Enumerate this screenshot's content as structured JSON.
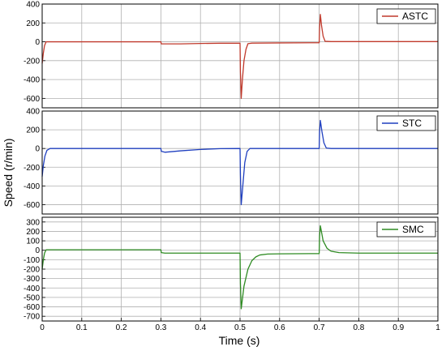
{
  "chart_data": {
    "type": "line",
    "xlabel": "Time (s)",
    "ylabel": "Speed (r/min)",
    "xlim": [
      0,
      1
    ],
    "x_ticks": [
      0,
      0.1,
      0.2,
      0.3,
      0.4,
      0.5,
      0.6,
      0.7,
      0.8,
      0.9,
      1
    ],
    "x_tick_labels": [
      "0",
      "0.1",
      "0.2",
      "0.3",
      "0.4",
      "0.5",
      "0.6",
      "0.7",
      "0.8",
      "0.9",
      "1"
    ],
    "grid": true,
    "legend_position": "top-right",
    "panels": [
      {
        "id": "astc",
        "ylim": [
          -700,
          400
        ],
        "y_ticks": [
          400,
          200,
          0,
          -200,
          -400,
          -600
        ],
        "series": [
          {
            "name": "ASTC",
            "color": "#c0392b",
            "points": [
              [
                0,
                -230
              ],
              [
                0.003,
                -120
              ],
              [
                0.006,
                -40
              ],
              [
                0.01,
                0
              ],
              [
                0.02,
                0
              ],
              [
                0.3,
                0
              ],
              [
                0.301,
                -22
              ],
              [
                0.35,
                -22
              ],
              [
                0.4,
                -18
              ],
              [
                0.45,
                -15
              ],
              [
                0.499,
                -15
              ],
              [
                0.5,
                -15
              ],
              [
                0.501,
                -320
              ],
              [
                0.503,
                -600
              ],
              [
                0.506,
                -400
              ],
              [
                0.51,
                -200
              ],
              [
                0.515,
                -80
              ],
              [
                0.52,
                -20
              ],
              [
                0.53,
                -14
              ],
              [
                0.6,
                -12
              ],
              [
                0.699,
                -10
              ],
              [
                0.7,
                -10
              ],
              [
                0.701,
                150
              ],
              [
                0.703,
                290
              ],
              [
                0.706,
                170
              ],
              [
                0.71,
                60
              ],
              [
                0.715,
                5
              ],
              [
                0.73,
                2
              ],
              [
                1,
                2
              ]
            ]
          }
        ]
      },
      {
        "id": "stc",
        "ylim": [
          -700,
          400
        ],
        "y_ticks": [
          400,
          200,
          0,
          -200,
          -400,
          -600
        ],
        "series": [
          {
            "name": "STC",
            "color": "#1f3fbf",
            "points": [
              [
                0,
                -300
              ],
              [
                0.003,
                -180
              ],
              [
                0.007,
                -80
              ],
              [
                0.012,
                -20
              ],
              [
                0.02,
                0
              ],
              [
                0.3,
                0
              ],
              [
                0.301,
                -30
              ],
              [
                0.31,
                -40
              ],
              [
                0.35,
                -25
              ],
              [
                0.4,
                -10
              ],
              [
                0.45,
                -2
              ],
              [
                0.499,
                0
              ],
              [
                0.5,
                0
              ],
              [
                0.501,
                -280
              ],
              [
                0.503,
                -600
              ],
              [
                0.507,
                -400
              ],
              [
                0.512,
                -150
              ],
              [
                0.518,
                -30
              ],
              [
                0.525,
                0
              ],
              [
                0.6,
                0
              ],
              [
                0.699,
                0
              ],
              [
                0.7,
                0
              ],
              [
                0.701,
                180
              ],
              [
                0.703,
                300
              ],
              [
                0.707,
                180
              ],
              [
                0.712,
                60
              ],
              [
                0.718,
                5
              ],
              [
                0.73,
                0
              ],
              [
                1,
                0
              ]
            ]
          }
        ]
      },
      {
        "id": "smc",
        "ylim": [
          -750,
          350
        ],
        "y_ticks": [
          300,
          200,
          100,
          0,
          -100,
          -200,
          -300,
          -400,
          -500,
          -600,
          -700
        ],
        "series": [
          {
            "name": "SMC",
            "color": "#2e8b22",
            "points": [
              [
                0,
                -200
              ],
              [
                0.003,
                -100
              ],
              [
                0.006,
                -30
              ],
              [
                0.01,
                5
              ],
              [
                0.02,
                5
              ],
              [
                0.3,
                5
              ],
              [
                0.301,
                -25
              ],
              [
                0.31,
                -30
              ],
              [
                0.4,
                -30
              ],
              [
                0.499,
                -30
              ],
              [
                0.5,
                -30
              ],
              [
                0.501,
                -350
              ],
              [
                0.503,
                -620
              ],
              [
                0.51,
                -380
              ],
              [
                0.52,
                -200
              ],
              [
                0.53,
                -110
              ],
              [
                0.54,
                -70
              ],
              [
                0.55,
                -50
              ],
              [
                0.57,
                -40
              ],
              [
                0.6,
                -38
              ],
              [
                0.699,
                -35
              ],
              [
                0.7,
                -35
              ],
              [
                0.701,
                150
              ],
              [
                0.703,
                260
              ],
              [
                0.71,
                100
              ],
              [
                0.72,
                20
              ],
              [
                0.73,
                -10
              ],
              [
                0.75,
                -25
              ],
              [
                0.8,
                -30
              ],
              [
                1,
                -30
              ]
            ]
          }
        ]
      }
    ]
  }
}
